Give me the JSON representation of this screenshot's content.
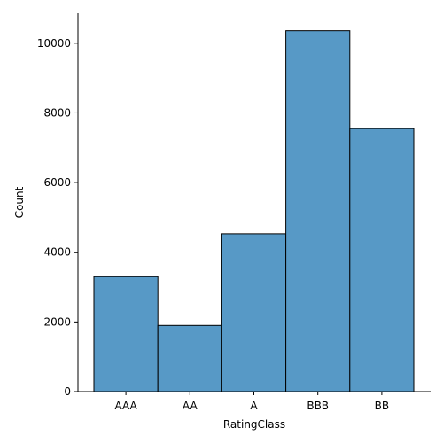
{
  "chart_data": {
    "type": "bar",
    "categories": [
      "AAA",
      "AA",
      "A",
      "BBB",
      "BB"
    ],
    "values": [
      3300,
      1900,
      4530,
      10360,
      7550
    ],
    "title": "",
    "xlabel": "RatingClass",
    "ylabel": "Count",
    "ylim": [
      0,
      10860
    ],
    "yticks": [
      0,
      2000,
      4000,
      6000,
      8000,
      10000
    ],
    "grid": false,
    "bar_color": "#5799c6",
    "edge_color": "#000000"
  }
}
